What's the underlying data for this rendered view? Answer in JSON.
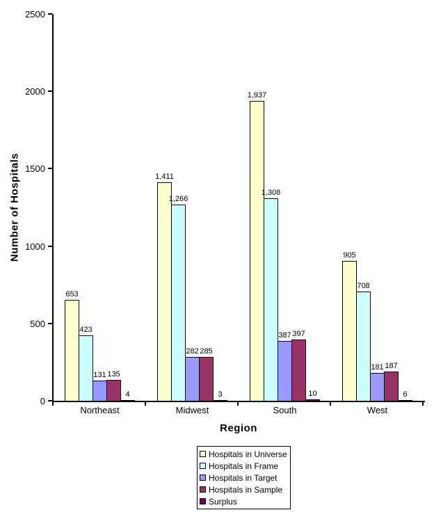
{
  "chart_data": {
    "type": "bar",
    "title": "",
    "xlabel": "Region",
    "ylabel": "Number of Hospitals",
    "categories": [
      "Northeast",
      "Midwest",
      "South",
      "West"
    ],
    "series": [
      {
        "name": "Hospitals in Universe",
        "color": "#FFFFCC",
        "values": [
          653,
          1411,
          1937,
          905
        ],
        "labels": [
          "653",
          "1,411",
          "1,937",
          "905"
        ]
      },
      {
        "name": "Hospitals in Frame",
        "color": "#CCFFFF",
        "values": [
          423,
          1266,
          1308,
          708
        ],
        "labels": [
          "423",
          "1,266",
          "1,308",
          "708"
        ]
      },
      {
        "name": "Hospitals in Target",
        "color": "#9999FF",
        "values": [
          131,
          282,
          387,
          181
        ],
        "labels": [
          "131",
          "282",
          "387",
          "181"
        ]
      },
      {
        "name": "Hospitals in Sample",
        "color": "#993366",
        "values": [
          135,
          285,
          397,
          187
        ],
        "labels": [
          "135",
          "285",
          "397",
          "187"
        ]
      },
      {
        "name": "Surplus",
        "color": "#660066",
        "values": [
          4,
          3,
          10,
          6
        ],
        "labels": [
          "4",
          "3",
          "10",
          "6"
        ]
      }
    ],
    "y_axis": {
      "min": 0,
      "max": 2500,
      "tick_step": 500,
      "ticks": [
        "0",
        "500",
        "1000",
        "1500",
        "2000",
        "2500"
      ]
    },
    "legend_position": "bottom-center",
    "grid": false,
    "axis_color": "#000000",
    "background_color": "#FFFFFF",
    "bar_border_color": "#000000"
  }
}
